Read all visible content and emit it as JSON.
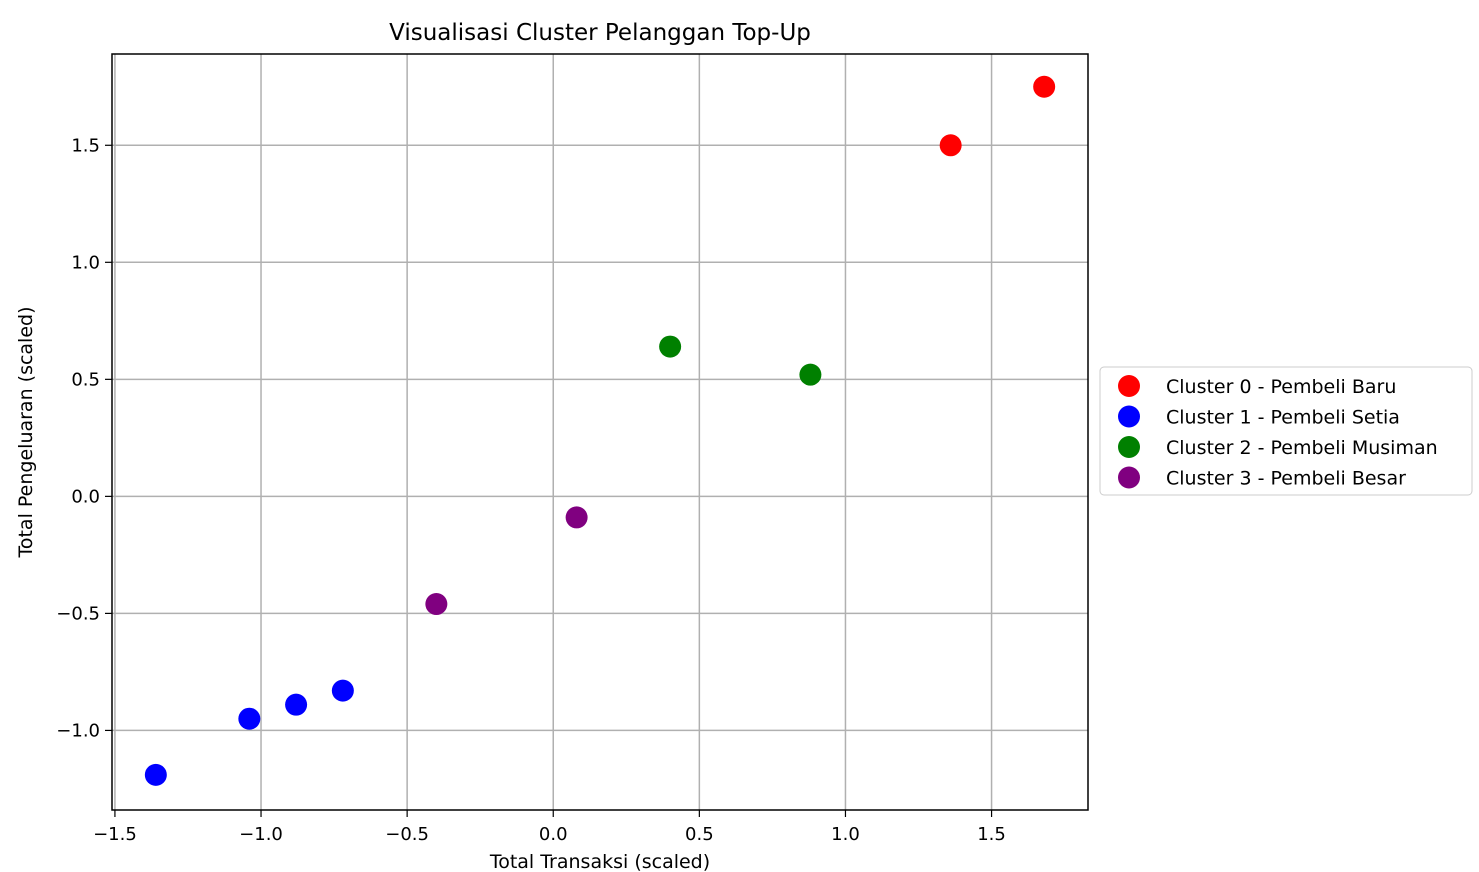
{
  "chart_data": {
    "type": "scatter",
    "title": "Visualisasi Cluster Pelanggan Top-Up",
    "xlabel": "Total Transaksi (scaled)",
    "ylabel": "Total Pengeluaran (scaled)",
    "xlim": [
      -1.51,
      1.83
    ],
    "ylim": [
      -1.34,
      1.89
    ],
    "xticks": [
      -1.5,
      -1.0,
      -0.5,
      0.0,
      0.5,
      1.0,
      1.5
    ],
    "xtick_labels": [
      "−1.5",
      "−1.0",
      "−0.5",
      "0.0",
      "0.5",
      "1.0",
      "1.5"
    ],
    "yticks": [
      -1.0,
      -0.5,
      0.0,
      0.5,
      1.0,
      1.5
    ],
    "ytick_labels": [
      "−1.0",
      "−0.5",
      "0.0",
      "0.5",
      "1.0",
      "1.5"
    ],
    "grid": true,
    "legend_position": "outside-right",
    "series": [
      {
        "name": "Cluster 0 - Pembeli Baru",
        "color": "#ff0000",
        "x": [
          1.36,
          1.68
        ],
        "y": [
          1.5,
          1.75
        ]
      },
      {
        "name": "Cluster 1 - Pembeli Setia",
        "color": "#0000ff",
        "x": [
          -1.36,
          -1.04,
          -0.88,
          -0.72
        ],
        "y": [
          -1.19,
          -0.95,
          -0.89,
          -0.83
        ]
      },
      {
        "name": "Cluster 2 - Pembeli Musiman",
        "color": "#008000",
        "x": [
          0.4,
          0.88
        ],
        "y": [
          0.64,
          0.52
        ]
      },
      {
        "name": "Cluster 3 - Pembeli Besar",
        "color": "#800080",
        "x": [
          -0.4,
          0.08
        ],
        "y": [
          -0.46,
          -0.09
        ]
      }
    ]
  }
}
